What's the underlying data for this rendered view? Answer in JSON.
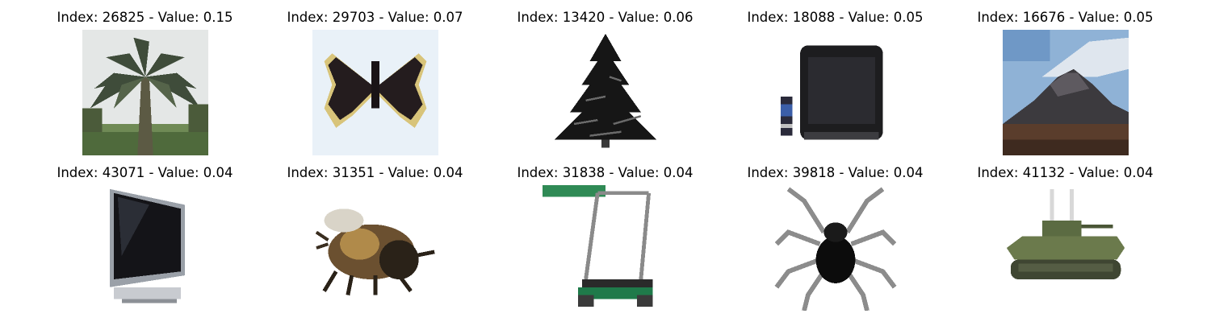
{
  "title_template": "Index: {index} - Value: {value}",
  "grid": {
    "items": [
      {
        "index": "26825",
        "value": "0.15",
        "subject": "palm-tree",
        "title": "Index: 26825 - Value: 0.15"
      },
      {
        "index": "29703",
        "value": "0.07",
        "subject": "butterfly",
        "title": "Index: 29703 - Value: 0.07"
      },
      {
        "index": "13420",
        "value": "0.06",
        "subject": "pine-tree",
        "title": "Index: 13420 - Value: 0.06"
      },
      {
        "index": "18088",
        "value": "0.05",
        "subject": "crt-television",
        "title": "Index: 18088 - Value: 0.05"
      },
      {
        "index": "16676",
        "value": "0.05",
        "subject": "mountain",
        "title": "Index: 16676 - Value: 0.05"
      },
      {
        "index": "43071",
        "value": "0.04",
        "subject": "flat-television",
        "title": "Index: 43071 - Value: 0.04"
      },
      {
        "index": "31351",
        "value": "0.04",
        "subject": "bee",
        "title": "Index: 31351 - Value: 0.04"
      },
      {
        "index": "31838",
        "value": "0.04",
        "subject": "lawn-mower",
        "title": "Index: 31838 - Value: 0.04"
      },
      {
        "index": "39818",
        "value": "0.04",
        "subject": "spider",
        "title": "Index: 39818 - Value: 0.04"
      },
      {
        "index": "41132",
        "value": "0.04",
        "subject": "tank",
        "title": "Index: 41132 - Value: 0.04"
      }
    ]
  }
}
